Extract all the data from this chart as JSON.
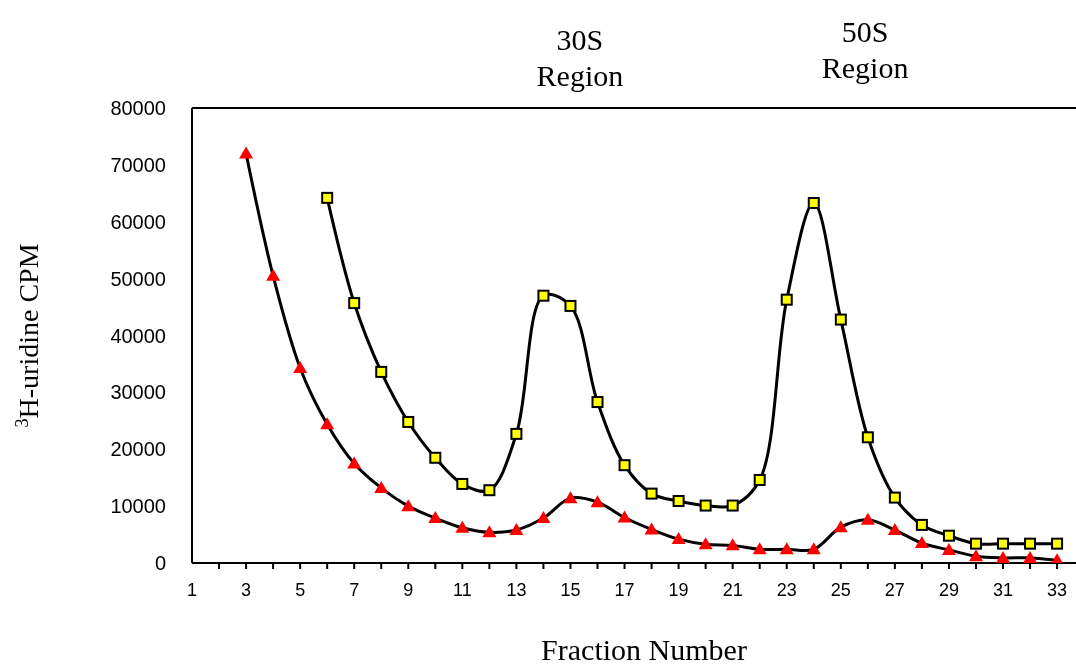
{
  "chart_data": {
    "type": "line",
    "xlabel": "Fraction Number",
    "ylabel": "$^{3}$H-uridine CPM",
    "annotations": [
      "30S\nRegion",
      "50S\nRegion"
    ],
    "x": [
      3,
      4,
      5,
      6,
      7,
      8,
      9,
      10,
      11,
      12,
      13,
      14,
      15,
      16,
      17,
      18,
      19,
      20,
      21,
      22,
      23,
      24,
      25,
      26,
      27,
      28,
      29,
      30,
      31,
      32,
      33
    ],
    "series": [
      {
        "color": "#000000",
        "marker": "none",
        "values": [
          null,
          null,
          null,
          64200,
          45700,
          33600,
          24800,
          18500,
          13900,
          12800,
          22700,
          47000,
          45200,
          28300,
          17200,
          12200,
          10900,
          10100,
          10100,
          14600,
          46300,
          63300,
          42800,
          22100,
          11500,
          6700,
          4800,
          3400,
          3400,
          3400,
          3400
        ]
      },
      {
        "color": "#000000",
        "marker": "none",
        "values": [
          72000,
          50500,
          34300,
          24400,
          17500,
          13200,
          10000,
          7900,
          6200,
          5400,
          5800,
          7900,
          11400,
          10700,
          8000,
          5900,
          4200,
          3300,
          3100,
          2400,
          2400,
          2400,
          6300,
          7600,
          5800,
          3500,
          2300,
          1200,
          900,
          900,
          500
        ]
      },
      {
        "type": "scatter",
        "color": "#ffff00",
        "marker": "square",
        "values": [
          null,
          null,
          null,
          64200,
          45700,
          33600,
          24800,
          18500,
          13900,
          12800,
          22700,
          47000,
          45200,
          28300,
          17200,
          12200,
          10900,
          10100,
          10100,
          14600,
          46300,
          63300,
          42800,
          22100,
          11500,
          6700,
          4800,
          3400,
          3400,
          3400,
          3400
        ]
      },
      {
        "type": "scatter",
        "color": "#ff0000",
        "marker": "triangle",
        "values": [
          72000,
          50500,
          34300,
          24400,
          17500,
          13200,
          10000,
          7900,
          6200,
          5400,
          5800,
          7900,
          11400,
          10700,
          8000,
          5900,
          4200,
          3300,
          3100,
          2400,
          2400,
          2400,
          6300,
          7600,
          5800,
          3500,
          2300,
          1200,
          900,
          900,
          500
        ]
      }
    ],
    "xlim": [
      1,
      33.7
    ],
    "xticks": [
      1,
      {
        "value": 2,
        "label": null
      },
      3,
      {
        "value": 4,
        "label": null
      },
      5,
      {
        "value": 6,
        "label": null
      },
      7,
      {
        "value": 8,
        "label": null
      },
      9,
      {
        "value": 10,
        "label": null
      },
      11,
      {
        "value": 12,
        "label": null
      },
      13,
      {
        "value": 14,
        "label": null
      },
      15,
      {
        "value": 16,
        "label": null
      },
      17,
      {
        "value": 18,
        "label": null
      },
      19,
      {
        "value": 20,
        "label": null
      },
      21,
      {
        "value": 22,
        "label": null
      },
      23,
      {
        "value": 24,
        "label": null
      },
      25,
      {
        "value": 26,
        "label": null
      },
      27,
      {
        "value": 28,
        "label": null
      },
      29,
      {
        "value": 30,
        "label": null
      },
      31,
      {
        "value": 32,
        "label": null
      },
      33
    ],
    "ylim": [
      0,
      80000
    ],
    "yticks": [
      0,
      10000,
      20000,
      30000,
      40000,
      50000,
      60000,
      70000,
      80000
    ],
    "grid": false,
    "line_style": "solid"
  }
}
